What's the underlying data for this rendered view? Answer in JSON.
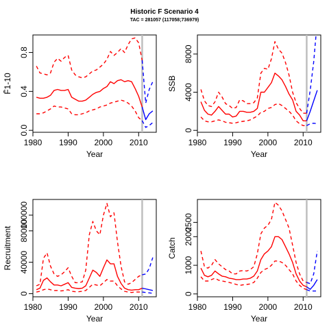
{
  "figure": {
    "title": "Historic F Scenario 4",
    "subtitle": "TAC = 281057 (117058;736979)"
  },
  "colors": {
    "historic": "#ff0000",
    "projection": "#0000ff",
    "marker": "#bebebe"
  },
  "chart_data": [
    {
      "type": "line",
      "id": "F",
      "ylabel": "F̄1-10",
      "xlabel": "Year",
      "xlim": [
        1980,
        2015
      ],
      "ylim": [
        -0.02,
        0.98
      ],
      "xticks": [
        1980,
        1990,
        2000,
        2010
      ],
      "yticks": [
        0.0,
        0.4,
        0.8
      ],
      "ytick_labels": [
        "0.0",
        "0.4",
        "0.8"
      ],
      "marker_year": 2011,
      "historic_x": [
        1981,
        1982,
        1983,
        1984,
        1985,
        1986,
        1987,
        1988,
        1989,
        1990,
        1991,
        1992,
        1993,
        1994,
        1995,
        1996,
        1997,
        1998,
        1999,
        2000,
        2001,
        2002,
        2003,
        2004,
        2005,
        2006,
        2007,
        2008,
        2009,
        2010,
        2011
      ],
      "historic": {
        "mid": [
          0.34,
          0.33,
          0.33,
          0.34,
          0.36,
          0.41,
          0.42,
          0.41,
          0.41,
          0.42,
          0.34,
          0.32,
          0.3,
          0.3,
          0.31,
          0.34,
          0.37,
          0.39,
          0.4,
          0.43,
          0.45,
          0.5,
          0.48,
          0.51,
          0.52,
          0.5,
          0.51,
          0.5,
          0.43,
          0.35,
          0.24
        ],
        "upper": [
          0.66,
          0.59,
          0.58,
          0.57,
          0.59,
          0.7,
          0.74,
          0.71,
          0.75,
          0.77,
          0.62,
          0.57,
          0.55,
          0.54,
          0.55,
          0.58,
          0.61,
          0.62,
          0.65,
          0.68,
          0.73,
          0.81,
          0.77,
          0.8,
          0.84,
          0.8,
          0.88,
          0.94,
          0.95,
          0.9,
          0.72
        ],
        "lower": [
          0.17,
          0.17,
          0.18,
          0.2,
          0.22,
          0.25,
          0.24,
          0.24,
          0.23,
          0.22,
          0.17,
          0.16,
          0.16,
          0.17,
          0.18,
          0.2,
          0.21,
          0.22,
          0.24,
          0.25,
          0.26,
          0.28,
          0.29,
          0.3,
          0.31,
          0.3,
          0.28,
          0.25,
          0.2,
          0.13,
          0.1
        ]
      },
      "projection_x": [
        2011,
        2012,
        2013,
        2014
      ],
      "projection": {
        "mid": [
          0.24,
          0.11,
          0.17,
          0.2
        ],
        "upper": [
          0.72,
          0.28,
          0.42,
          0.5
        ],
        "lower": [
          0.1,
          0.03,
          0.05,
          0.08
        ]
      }
    },
    {
      "type": "line",
      "id": "SSB",
      "ylabel": "SSB",
      "xlabel": "Year",
      "xlim": [
        1980,
        2015
      ],
      "ylim": [
        -200,
        10000
      ],
      "xticks": [
        1980,
        1990,
        2000,
        2010
      ],
      "yticks": [
        0,
        4000,
        8000
      ],
      "ytick_labels": [
        "0",
        "4000",
        "8000"
      ],
      "marker_year": 2011,
      "historic_x": [
        1981,
        1982,
        1983,
        1984,
        1985,
        1986,
        1987,
        1988,
        1989,
        1990,
        1991,
        1992,
        1993,
        1994,
        1995,
        1996,
        1997,
        1998,
        1999,
        2000,
        2001,
        2002,
        2003,
        2004,
        2005,
        2006,
        2007,
        2008,
        2009,
        2010,
        2011
      ],
      "historic": {
        "mid": [
          3000,
          2100,
          1700,
          1600,
          2000,
          2500,
          2100,
          1700,
          1700,
          1400,
          1500,
          2000,
          2000,
          1900,
          1900,
          2000,
          2300,
          4000,
          4000,
          4500,
          5000,
          6000,
          5700,
          5300,
          4600,
          3800,
          3200,
          2000,
          1600,
          1000,
          1000
        ],
        "upper": [
          4300,
          3100,
          2600,
          2500,
          3000,
          4000,
          3500,
          2800,
          2600,
          2300,
          2400,
          3200,
          3100,
          2800,
          2800,
          2900,
          3400,
          6000,
          6500,
          6400,
          7500,
          9300,
          8500,
          8100,
          7100,
          5800,
          4000,
          2900,
          2300,
          1800,
          1800
        ],
        "lower": [
          1400,
          1000,
          900,
          900,
          1000,
          1100,
          1000,
          850,
          800,
          750,
          800,
          900,
          950,
          1000,
          1100,
          1300,
          1500,
          1900,
          2000,
          2300,
          2400,
          2700,
          2800,
          2600,
          2300,
          2000,
          1600,
          1000,
          700,
          500,
          500
        ]
      },
      "projection_x": [
        2011,
        2012,
        2013,
        2014
      ],
      "projection": {
        "mid": [
          1000,
          2000,
          3100,
          4200
        ],
        "upper": [
          1800,
          4200,
          7200,
          11500
        ],
        "lower": [
          500,
          700,
          750,
          700
        ]
      }
    },
    {
      "type": "line",
      "id": "Recruitment",
      "ylabel": "Recruitment",
      "xlabel": "Year",
      "xlim": [
        1980,
        2015
      ],
      "ylim": [
        -4000,
        120000
      ],
      "xticks": [
        1980,
        1990,
        2000,
        2010
      ],
      "yticks": [
        0,
        40000,
        80000,
        100000
      ],
      "ytick_labels": [
        "0",
        "40000",
        "80000",
        "100000"
      ],
      "marker_year": 2011,
      "historic_x": [
        1981,
        1982,
        1983,
        1984,
        1985,
        1986,
        1987,
        1988,
        1989,
        1990,
        1991,
        1992,
        1993,
        1994,
        1995,
        1996,
        1997,
        1998,
        1999,
        2000,
        2001,
        2002,
        2003,
        2004,
        2005,
        2006,
        2007,
        2008,
        2009,
        2010,
        2011
      ],
      "historic": {
        "mid": [
          5000,
          7000,
          17000,
          20000,
          15000,
          11000,
          11000,
          10000,
          12000,
          14000,
          8000,
          7000,
          6500,
          7000,
          10000,
          20000,
          30000,
          27000,
          22000,
          33000,
          43000,
          38000,
          38000,
          22000,
          13000,
          7000,
          5000,
          4500,
          5000,
          5000,
          7000
        ],
        "upper": [
          10000,
          12000,
          45000,
          52000,
          35000,
          25000,
          22000,
          24000,
          28000,
          33000,
          22000,
          14000,
          14000,
          15000,
          30000,
          75000,
          92000,
          80000,
          75000,
          100000,
          115000,
          98000,
          103000,
          66000,
          35000,
          15000,
          12000,
          14000,
          18000,
          22000,
          24000
        ],
        "lower": [
          2000,
          3000,
          5000,
          6000,
          5000,
          4000,
          4000,
          3500,
          4000,
          5000,
          3000,
          2500,
          2500,
          3000,
          4000,
          8000,
          12000,
          11000,
          10000,
          14000,
          18000,
          16000,
          16000,
          10000,
          6000,
          3000,
          2000,
          1500,
          2000,
          2000,
          2000
        ]
      },
      "projection_x": [
        2011,
        2012,
        2013,
        2014
      ],
      "projection": {
        "mid": [
          7000,
          6000,
          5000,
          4000
        ],
        "upper": [
          24000,
          25000,
          32000,
          46000
        ],
        "lower": [
          2000,
          1500,
          1000,
          500
        ]
      }
    },
    {
      "type": "line",
      "id": "Catch",
      "ylabel": "Catch",
      "xlabel": "Year",
      "xlim": [
        1980,
        2015
      ],
      "ylim": [
        -100,
        3300
      ],
      "xticks": [
        1980,
        1990,
        2000,
        2010
      ],
      "yticks": [
        0,
        1000,
        2000,
        2500
      ],
      "ytick_labels": [
        "0",
        "1000",
        "2000",
        "2500"
      ],
      "marker_year": 2011,
      "historic_x": [
        1981,
        1982,
        1983,
        1984,
        1985,
        1986,
        1987,
        1988,
        1989,
        1990,
        1991,
        1992,
        1993,
        1994,
        1995,
        1996,
        1997,
        1998,
        1999,
        2000,
        2001,
        2002,
        2003,
        2004,
        2005,
        2006,
        2007,
        2008,
        2009,
        2010,
        2011
      ],
      "historic": {
        "mid": [
          900,
          650,
          600,
          650,
          800,
          700,
          620,
          600,
          550,
          530,
          500,
          500,
          520,
          520,
          550,
          620,
          800,
          1200,
          1400,
          1500,
          1650,
          2000,
          2000,
          1900,
          1650,
          1400,
          1100,
          700,
          450,
          300,
          250
        ],
        "upper": [
          1500,
          950,
          900,
          1000,
          1200,
          1050,
          950,
          850,
          800,
          700,
          700,
          800,
          820,
          800,
          850,
          950,
          1400,
          2100,
          2300,
          2400,
          2600,
          3200,
          3100,
          2900,
          2600,
          2300,
          1700,
          1100,
          700,
          450,
          400
        ],
        "lower": [
          600,
          450,
          450,
          500,
          550,
          480,
          450,
          430,
          400,
          370,
          330,
          300,
          320,
          330,
          350,
          400,
          550,
          750,
          850,
          900,
          1000,
          1150,
          1150,
          1100,
          1000,
          850,
          700,
          450,
          300,
          200,
          150
        ]
      },
      "projection_x": [
        2011,
        2012,
        2013,
        2014
      ],
      "projection": {
        "mid": [
          250,
          160,
          300,
          500
        ],
        "upper": [
          400,
          360,
          700,
          1500
        ],
        "lower": [
          150,
          100,
          100,
          100
        ]
      }
    }
  ]
}
